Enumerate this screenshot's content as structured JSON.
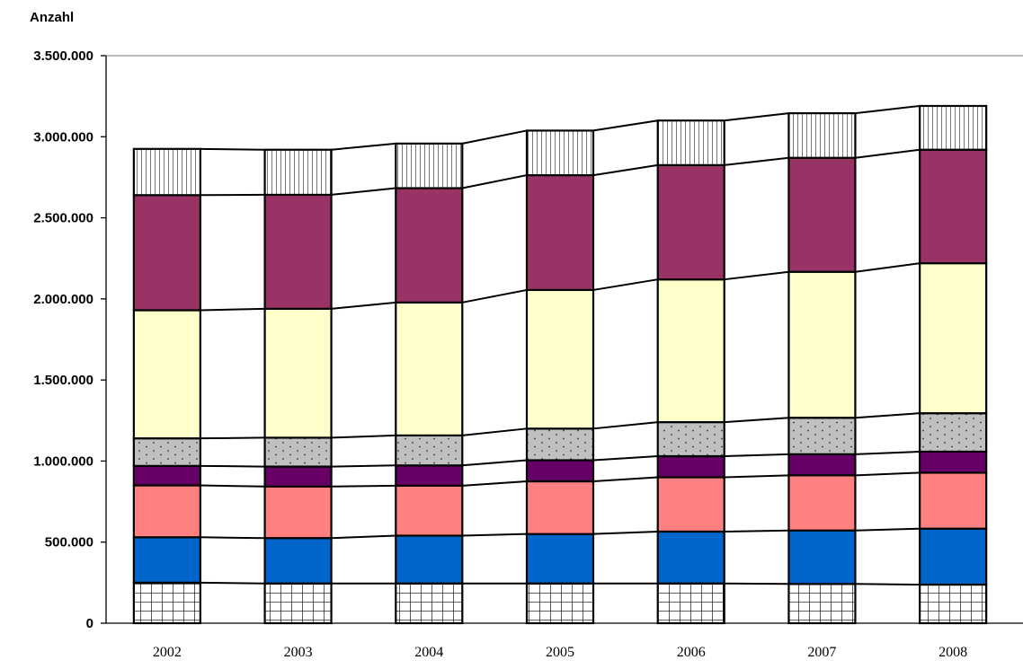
{
  "chart_data": {
    "type": "bar",
    "stacked": true,
    "ylabel": "Anzahl",
    "xlabel": "",
    "categories": [
      "2002",
      "2003",
      "2004",
      "2005",
      "2006",
      "2007",
      "2008"
    ],
    "ylim": [
      0,
      3500000
    ],
    "yticks": [
      0,
      500000,
      1000000,
      1500000,
      2000000,
      2500000,
      3000000,
      3500000
    ],
    "ytick_labels": [
      "0",
      "500.000",
      "1.000.000",
      "1.500.000",
      "2.000.000",
      "2.500.000",
      "3.000.000",
      "3.500.000"
    ],
    "grid": false,
    "legend": "none",
    "connector_lines": true,
    "series": [
      {
        "fill": "#ffffff",
        "pattern": "grid",
        "values": [
          250000,
          245000,
          245000,
          245000,
          245000,
          242000,
          238000
        ]
      },
      {
        "fill": "#0066cc",
        "pattern": "solid",
        "values": [
          280000,
          280000,
          295000,
          305000,
          320000,
          330000,
          345000
        ]
      },
      {
        "fill": "#ff8080",
        "pattern": "solid",
        "values": [
          320000,
          318000,
          308000,
          325000,
          335000,
          340000,
          345000
        ]
      },
      {
        "fill": "#660066",
        "pattern": "solid",
        "values": [
          120000,
          123000,
          125000,
          130000,
          130000,
          130000,
          130000
        ]
      },
      {
        "fill": "#c0c0c0",
        "pattern": "dots",
        "values": [
          170000,
          178000,
          185000,
          195000,
          210000,
          225000,
          237000
        ]
      },
      {
        "fill": "#ffffcc",
        "pattern": "solid",
        "values": [
          790000,
          795000,
          820000,
          855000,
          880000,
          900000,
          925000
        ]
      },
      {
        "fill": "#993366",
        "pattern": "solid",
        "values": [
          710000,
          703000,
          705000,
          708000,
          705000,
          703000,
          700000
        ]
      },
      {
        "fill": "#ffffff",
        "pattern": "vlines",
        "values": [
          285000,
          278000,
          275000,
          275000,
          275000,
          275000,
          270000
        ]
      }
    ]
  }
}
